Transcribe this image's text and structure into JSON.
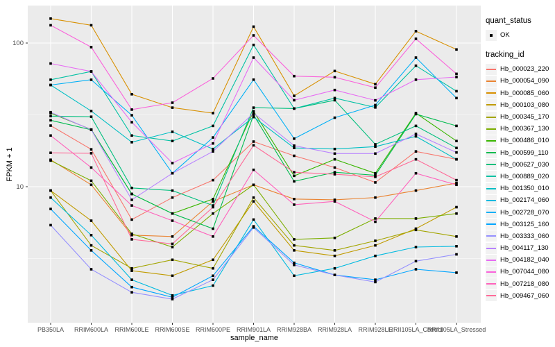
{
  "axes": {
    "y_title": "FPKM + 1",
    "x_title": "sample_name",
    "y_ticks": [
      "100",
      "10"
    ]
  },
  "legend": {
    "quant_title": "quant_status",
    "quant_items": [
      {
        "label": "OK"
      }
    ],
    "tracking_title": "tracking_id"
  },
  "colors": {
    "panel_bg": "#EBEBEB",
    "grid": "#FFFFFF",
    "tick_text": "#4D4D4D",
    "point": "#000000",
    "legend_key_bg": "#F2F2F2"
  },
  "chart_data": {
    "type": "line",
    "x_axis": "sample_name",
    "y_axis": "FPKM + 1",
    "y_scale": "log10",
    "ylim": [
      1.5,
      170
    ],
    "grid": "on",
    "legend_position": "right",
    "categories": [
      "PB350LA",
      "RRIM600LA",
      "RRIM600LE",
      "RRIM600SE",
      "RRIM600PE",
      "RRIM901LA",
      "RRIM928BA",
      "RRIM928LA",
      "RRIM928LE",
      "RRII105LA_Control",
      "RRII105LA_Stressed"
    ],
    "quant_status": "OK",
    "series": [
      {
        "name": "Hb_000023_220",
        "color": "#F8766D",
        "values": [
          26.6,
          18.2,
          5.9,
          8.4,
          11.1,
          20.6,
          16.4,
          13.6,
          10.7,
          17.6,
          15.5
        ]
      },
      {
        "name": "Hb_000054_090",
        "color": "#EA8331",
        "values": [
          15.4,
          10.3,
          4.6,
          4.5,
          7.9,
          10.3,
          8.2,
          8.1,
          8.4,
          9.4,
          10.6
        ]
      },
      {
        "name": "Hb_000085_060",
        "color": "#D89000",
        "values": [
          148,
          133,
          44,
          35.5,
          32.5,
          130,
          42.9,
          63.9,
          51.7,
          121,
          90.2
        ]
      },
      {
        "name": "Hb_000103_080",
        "color": "#C09B00",
        "values": [
          9.4,
          5.8,
          2.6,
          2.4,
          3.1,
          7.9,
          3.6,
          3.3,
          3.9,
          5.1,
          7.2
        ]
      },
      {
        "name": "Hb_000345_170",
        "color": "#A3A500",
        "values": [
          9.4,
          3.9,
          2.7,
          3.1,
          2.7,
          8.4,
          3.9,
          3.6,
          4.2,
          5.0,
          4.5
        ]
      },
      {
        "name": "Hb_000367_130",
        "color": "#7CAE00",
        "values": [
          15.2,
          11.0,
          4.7,
          3.8,
          6.5,
          10.3,
          4.3,
          4.4,
          6.0,
          6.0,
          6.5
        ]
      },
      {
        "name": "Hb_000486_010",
        "color": "#39B600",
        "values": [
          32.5,
          25.0,
          8.9,
          6.5,
          8.2,
          33.5,
          11.9,
          15.5,
          12.4,
          32.5,
          20.8
        ]
      },
      {
        "name": "Hb_000599_110",
        "color": "#00BB4E",
        "values": [
          29.0,
          24.9,
          8.9,
          6.5,
          5.1,
          31.6,
          10.9,
          12.6,
          12.0,
          32.0,
          26.5
        ]
      },
      {
        "name": "Hb_000627_030",
        "color": "#00BF7D",
        "values": [
          31.0,
          30.7,
          9.8,
          9.4,
          7.4,
          35.5,
          35.0,
          40.0,
          19.7,
          26.5,
          18.6
        ]
      },
      {
        "name": "Hb_000889_020",
        "color": "#00C1A3",
        "values": [
          55.5,
          63.4,
          22.7,
          20.8,
          26.5,
          97.0,
          35.0,
          41.4,
          35.6,
          69.5,
          46.2
        ]
      },
      {
        "name": "Hb_001350_010",
        "color": "#00BFC4",
        "values": [
          51.0,
          33.6,
          20.4,
          24.1,
          18.3,
          30.5,
          18.6,
          18.3,
          19.0,
          22.4,
          15.5
        ]
      },
      {
        "name": "Hb_002174_060",
        "color": "#00BAE0",
        "values": [
          8.4,
          4.6,
          2.25,
          1.75,
          2.05,
          5.9,
          2.4,
          2.7,
          3.3,
          3.8,
          3.85
        ]
      },
      {
        "name": "Hb_002728_070",
        "color": "#00B0F6",
        "values": [
          51.0,
          55.5,
          31.4,
          12.4,
          22.0,
          55.6,
          21.6,
          30.2,
          37.0,
          79.2,
          41.4
        ]
      },
      {
        "name": "Hb_003125_160",
        "color": "#00A5FF",
        "values": [
          7.0,
          3.6,
          2.0,
          1.7,
          2.4,
          5.3,
          2.95,
          2.43,
          2.25,
          2.66,
          2.52
        ]
      },
      {
        "name": "Hb_003333_060",
        "color": "#9590FF",
        "values": [
          5.4,
          2.66,
          1.84,
          1.65,
          2.25,
          5.2,
          2.85,
          2.43,
          2.17,
          3.03,
          3.38
        ]
      },
      {
        "name": "Hb_004117_130",
        "color": "#B983FF",
        "values": [
          33.0,
          24.9,
          8.1,
          12.4,
          17.6,
          32.5,
          19.3,
          17.0,
          17.0,
          23.3,
          17.3
        ]
      },
      {
        "name": "Hb_004182_040",
        "color": "#E76BF3",
        "values": [
          72.0,
          63.4,
          28.1,
          14.6,
          20.0,
          79.2,
          40.0,
          47.1,
          39.9,
          55.6,
          58.0
        ]
      },
      {
        "name": "Hb_007044_080",
        "color": "#FA62DB",
        "values": [
          133,
          93.6,
          34.4,
          38.4,
          56.7,
          113,
          58.8,
          57.8,
          48.9,
          107,
          61.0
        ]
      },
      {
        "name": "Hb_007218_080",
        "color": "#FF62BC",
        "values": [
          22.7,
          13.6,
          7.4,
          5.8,
          4.5,
          13.1,
          7.5,
          7.9,
          5.7,
          12.4,
          10.3
        ]
      },
      {
        "name": "Hb_009467_060",
        "color": "#FF6A98",
        "values": [
          17.2,
          17.1,
          4.3,
          4.0,
          7.2,
          19.4,
          12.6,
          12.2,
          11.7,
          15.5,
          11.1
        ]
      }
    ]
  }
}
